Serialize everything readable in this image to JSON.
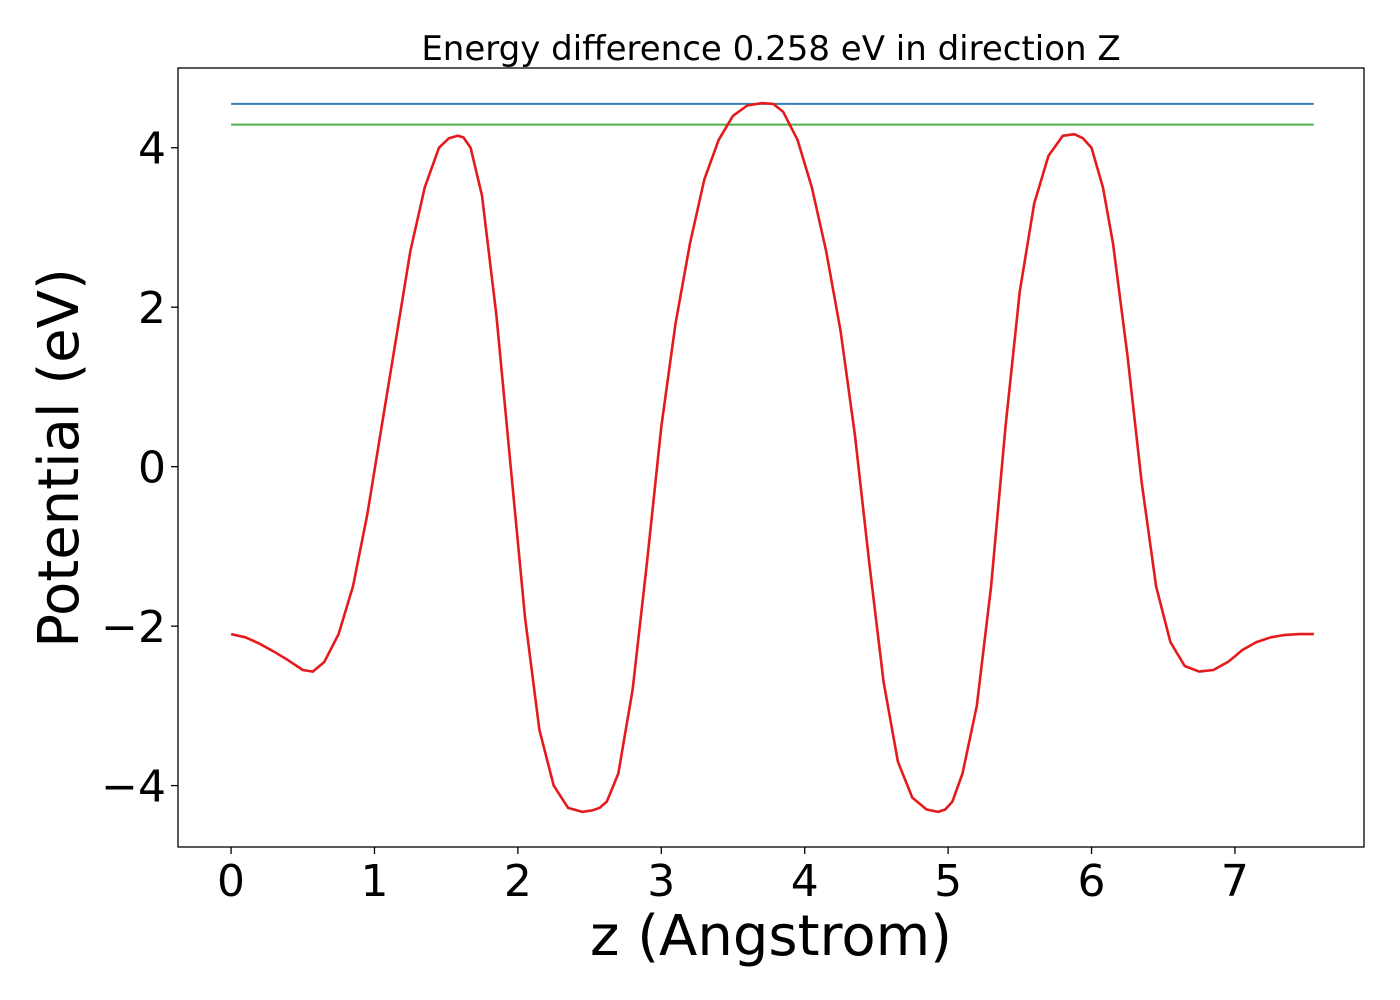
{
  "chart_data": {
    "type": "line",
    "title": "Energy difference 0.258 eV in direction Z",
    "xlabel": "z (Angstrom)",
    "ylabel": "Potential (eV)",
    "xlim": [
      -0.37,
      7.9
    ],
    "ylim": [
      -4.77,
      5.0
    ],
    "xticks": [
      0,
      1,
      2,
      3,
      4,
      5,
      6,
      7
    ],
    "yticks": [
      -4,
      -2,
      0,
      2,
      4
    ],
    "xtick_labels": [
      "0",
      "1",
      "2",
      "3",
      "4",
      "5",
      "6",
      "7"
    ],
    "ytick_labels": [
      "−4",
      "−2",
      "0",
      "2",
      "4"
    ],
    "grid": false,
    "colors": {
      "potential": "#e41a1c",
      "max_level": "#377eb8",
      "second_level": "#4daf4a"
    },
    "horizontal_lines": [
      {
        "y": 4.55,
        "x_range": [
          0,
          7.55
        ],
        "color": "#377eb8"
      },
      {
        "y": 4.29,
        "x_range": [
          0,
          7.55
        ],
        "color": "#4daf4a"
      }
    ],
    "series": [
      {
        "color": "#e41a1c",
        "x": [
          0,
          0.1,
          0.2,
          0.3,
          0.4,
          0.5,
          0.57,
          0.65,
          0.75,
          0.85,
          0.95,
          1.05,
          1.15,
          1.25,
          1.35,
          1.45,
          1.52,
          1.58,
          1.62,
          1.67,
          1.75,
          1.85,
          1.95,
          2.05,
          2.15,
          2.25,
          2.35,
          2.45,
          2.52,
          2.57,
          2.62,
          2.7,
          2.8,
          2.9,
          3.0,
          3.1,
          3.2,
          3.3,
          3.4,
          3.5,
          3.6,
          3.7,
          3.78,
          3.85,
          3.95,
          4.05,
          4.15,
          4.25,
          4.35,
          4.45,
          4.55,
          4.65,
          4.75,
          4.85,
          4.93,
          4.98,
          5.03,
          5.1,
          5.2,
          5.3,
          5.4,
          5.5,
          5.6,
          5.7,
          5.8,
          5.88,
          5.94,
          6.0,
          6.08,
          6.15,
          6.25,
          6.35,
          6.45,
          6.55,
          6.65,
          6.75,
          6.85,
          6.95,
          7.0,
          7.05,
          7.15,
          7.25,
          7.35,
          7.45,
          7.55
        ],
        "values": [
          -2.1,
          -2.14,
          -2.22,
          -2.32,
          -2.43,
          -2.55,
          -2.57,
          -2.45,
          -2.1,
          -1.5,
          -0.6,
          0.5,
          1.6,
          2.7,
          3.5,
          4.0,
          4.12,
          4.15,
          4.13,
          4.0,
          3.4,
          1.9,
          0.0,
          -1.9,
          -3.3,
          -4.0,
          -4.28,
          -4.33,
          -4.31,
          -4.28,
          -4.2,
          -3.85,
          -2.8,
          -1.2,
          0.5,
          1.8,
          2.8,
          3.6,
          4.1,
          4.4,
          4.53,
          4.56,
          4.55,
          4.45,
          4.1,
          3.5,
          2.7,
          1.7,
          0.4,
          -1.2,
          -2.7,
          -3.7,
          -4.15,
          -4.3,
          -4.33,
          -4.3,
          -4.2,
          -3.85,
          -3.0,
          -1.5,
          0.5,
          2.2,
          3.3,
          3.9,
          4.15,
          4.17,
          4.12,
          4.0,
          3.5,
          2.8,
          1.4,
          -0.2,
          -1.5,
          -2.2,
          -2.5,
          -2.57,
          -2.55,
          -2.45,
          -2.38,
          -2.3,
          -2.2,
          -2.14,
          -2.11,
          -2.1,
          -2.1
        ]
      }
    ]
  }
}
